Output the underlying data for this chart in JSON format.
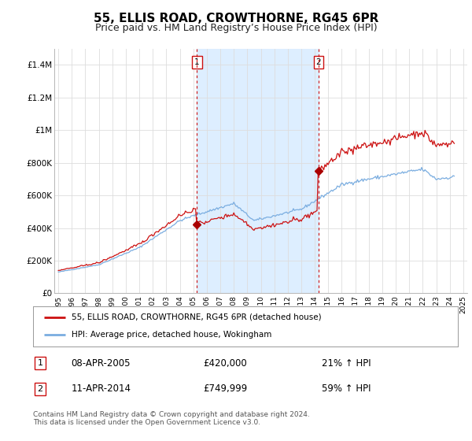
{
  "title": "55, ELLIS ROAD, CROWTHORNE, RG45 6PR",
  "subtitle": "Price paid vs. HM Land Registry’s House Price Index (HPI)",
  "title_fontsize": 11,
  "subtitle_fontsize": 9,
  "background_color": "#ffffff",
  "plot_bg_color": "#ffffff",
  "red_line_color": "#cc1111",
  "blue_line_color": "#7aade0",
  "shade_color": "#ddeeff",
  "marker_color": "#aa0000",
  "sale1_year": 2005.27,
  "sale1_price": 420000,
  "sale1_label": "1",
  "sale1_date": "08-APR-2005",
  "sale1_hpi_pct": "21% ↑ HPI",
  "sale2_year": 2014.27,
  "sale2_price": 749999,
  "sale2_label": "2",
  "sale2_date": "11-APR-2014",
  "sale2_hpi_pct": "59% ↑ HPI",
  "ylabel_ticks": [
    0,
    200000,
    400000,
    600000,
    800000,
    1000000,
    1200000,
    1400000
  ],
  "ylabel_labels": [
    "£0",
    "£200K",
    "£400K",
    "£600K",
    "£800K",
    "£1M",
    "£1.2M",
    "£1.4M"
  ],
  "ylim": [
    0,
    1500000
  ],
  "xlim_min": 1994.7,
  "xlim_max": 2025.3,
  "legend_line1": "55, ELLIS ROAD, CROWTHORNE, RG45 6PR (detached house)",
  "legend_line2": "HPI: Average price, detached house, Wokingham",
  "footer": "Contains HM Land Registry data © Crown copyright and database right 2024.\nThis data is licensed under the Open Government Licence v3.0.",
  "grid_color": "#dddddd",
  "spine_color": "#aaaaaa"
}
